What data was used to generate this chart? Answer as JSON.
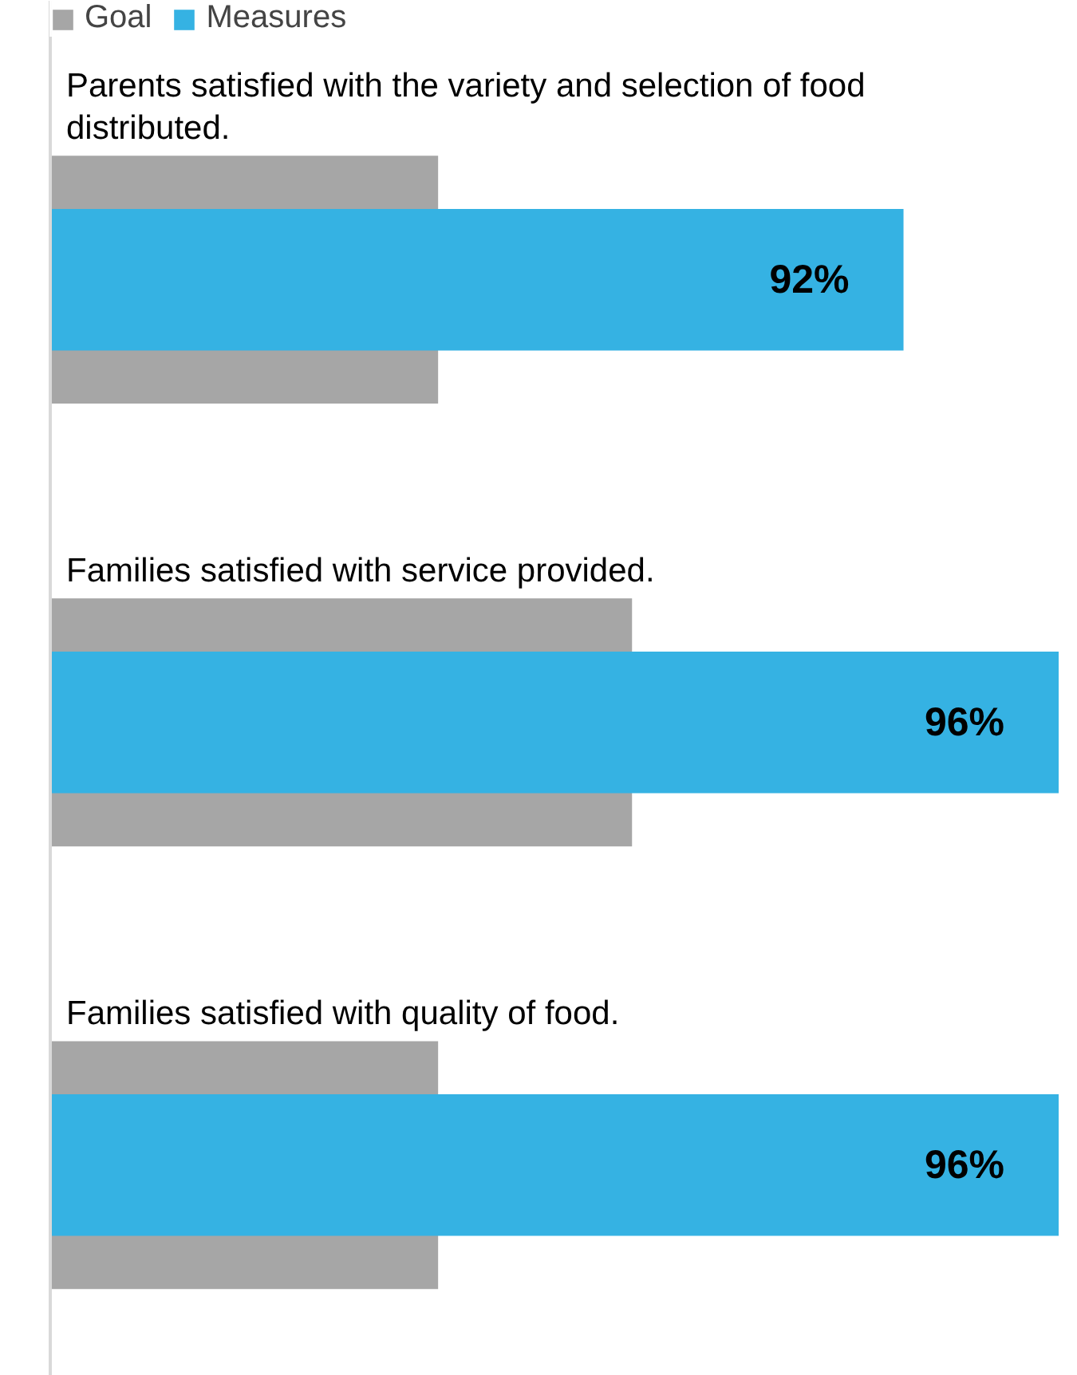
{
  "chart_data": {
    "type": "bar",
    "orientation": "horizontal",
    "categories": [
      "Parents satisfied with the variety and selection of food distributed.",
      "Families satisfied with service provided.",
      "Families satisfied with quality of food."
    ],
    "series": [
      {
        "name": "Goal",
        "color": "#a6a6a6",
        "values": [
          80,
          85,
          80
        ]
      },
      {
        "name": "Measures",
        "color": "#35b2e3",
        "values": [
          92,
          96,
          96
        ],
        "value_labels": [
          "92%",
          "96%",
          "96%"
        ]
      }
    ],
    "xlim": [
      70,
      96
    ],
    "tick_labels": false,
    "legend": "top left",
    "grid": false
  }
}
